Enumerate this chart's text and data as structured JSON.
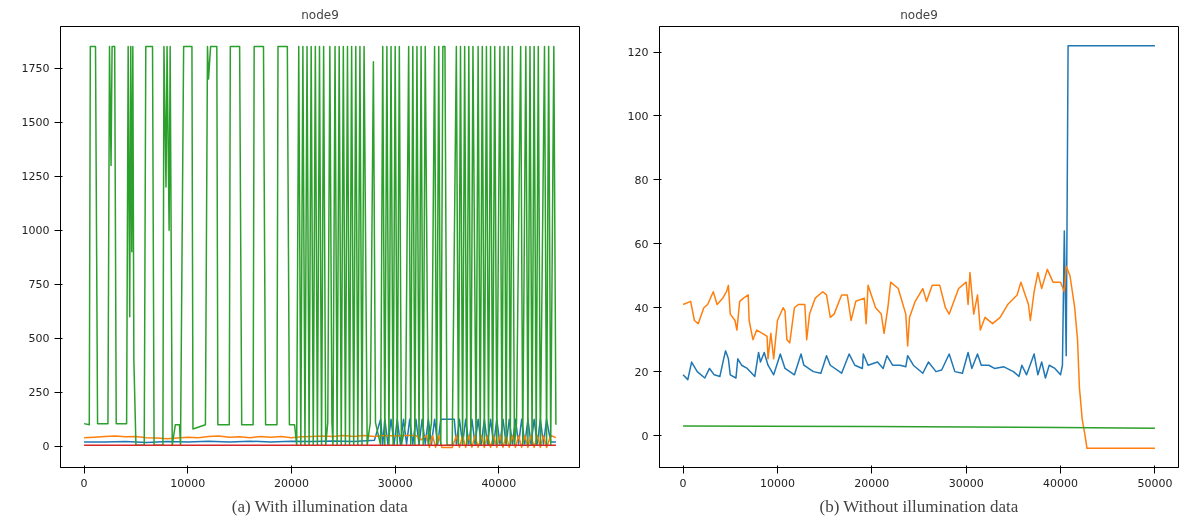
{
  "chart_data": [
    {
      "type": "line",
      "title": "node9",
      "annotations": [
        "(a) With illumination data"
      ],
      "grid": false,
      "xlim": [
        -2275,
        47775
      ],
      "ylim": [
        -98,
        1943
      ],
      "xticks": [
        0,
        10000,
        20000,
        30000,
        40000
      ],
      "yticks": [
        0,
        250,
        500,
        750,
        1000,
        1250,
        1500,
        1750
      ],
      "series": [
        {
          "color": "#1f77b4",
          "x": [
            0,
            2000,
            4000,
            6000,
            8000,
            10000,
            12000,
            14000,
            16000,
            18000,
            20000,
            22000,
            24000,
            26000,
            28000,
            28600,
            28800,
            29000,
            29300,
            29600,
            29900,
            30200,
            30500,
            30800,
            31100,
            31400,
            31700,
            32000,
            32300,
            32600,
            32900,
            33200,
            33500,
            33800,
            34100,
            34400,
            35700,
            35900,
            36200,
            36500,
            36800,
            37100,
            37400,
            37700,
            38000,
            38300,
            38600,
            38900,
            39200,
            39500,
            39800,
            40100,
            40400,
            40700,
            41000,
            41300,
            41600,
            41900,
            42200,
            42500,
            42800,
            43100,
            43400,
            43700,
            44000,
            44300,
            44600,
            45000,
            45500
          ],
          "values": [
            20,
            20,
            22,
            18,
            22,
            20,
            24,
            20,
            24,
            20,
            24,
            22,
            25,
            22,
            28,
            125,
            10,
            125,
            10,
            125,
            10,
            125,
            10,
            125,
            10,
            125,
            10,
            125,
            10,
            125,
            10,
            125,
            10,
            125,
            10,
            125,
            125,
            10,
            125,
            10,
            125,
            10,
            125,
            10,
            125,
            10,
            125,
            10,
            125,
            10,
            125,
            10,
            125,
            10,
            125,
            10,
            125,
            10,
            125,
            10,
            125,
            10,
            125,
            10,
            125,
            10,
            125,
            20,
            20
          ]
        },
        {
          "color": "#ff7f0e",
          "x": [
            0,
            1000,
            2000,
            3000,
            4000,
            5000,
            6000,
            7000,
            8000,
            9000,
            10000,
            11000,
            12000,
            13000,
            14000,
            15000,
            16000,
            17000,
            18000,
            19000,
            20000,
            21000,
            22000,
            23000,
            24000,
            25000,
            26000,
            27000,
            28000,
            29000,
            30000,
            31000,
            32000,
            32500,
            33000,
            33300,
            33600,
            33900,
            34200,
            34500,
            35500,
            35900,
            36200,
            36500,
            36800,
            37100,
            37400,
            37700,
            38000,
            38300,
            38600,
            38900,
            39200,
            39500,
            39800,
            40100,
            40400,
            40700,
            41000,
            41300,
            41600,
            41900,
            42200,
            42500,
            42800,
            43100,
            43400,
            43700,
            44000,
            44300,
            44600,
            45000,
            45500
          ],
          "values": [
            40,
            42,
            45,
            48,
            44,
            46,
            40,
            38,
            35,
            38,
            42,
            40,
            45,
            48,
            42,
            44,
            40,
            45,
            42,
            46,
            40,
            44,
            46,
            48,
            45,
            50,
            45,
            50,
            46,
            50,
            48,
            50,
            50,
            30,
            50,
            -5,
            50,
            -5,
            50,
            -5,
            -5,
            50,
            -5,
            50,
            -5,
            50,
            -5,
            50,
            -5,
            50,
            -5,
            50,
            -5,
            50,
            -5,
            50,
            -5,
            50,
            -5,
            50,
            -5,
            50,
            -5,
            50,
            -5,
            50,
            -5,
            50,
            -5,
            50,
            -5,
            50,
            40
          ]
        },
        {
          "color": "#2ca02c",
          "x": [
            0,
            500,
            600,
            1100,
            1300,
            2300,
            2450,
            2600,
            2700,
            2950,
            3100,
            4100,
            4250,
            4400,
            4500,
            4600,
            4700,
            4800,
            5000,
            5800,
            5950,
            6600,
            6750,
            7600,
            7700,
            7900,
            8000,
            8200,
            8300,
            8500,
            8800,
            9200,
            9300,
            9600,
            10400,
            10500,
            11700,
            11900,
            12000,
            12200,
            12800,
            12900,
            14000,
            14100,
            15000,
            15200,
            16300,
            16400,
            17300,
            17500,
            18600,
            18700,
            19600,
            19800,
            20300,
            20500,
            20700,
            20900,
            21100,
            21300,
            21500,
            21700,
            21900,
            22100,
            22300,
            22500,
            22700,
            22900,
            23100,
            23300,
            23500,
            23700,
            23900,
            24000,
            24200,
            24400,
            24600,
            24800,
            25000,
            25200,
            25400,
            25600,
            25800,
            26000,
            26200,
            26400,
            26600,
            26800,
            27000,
            27300,
            27600,
            27900,
            28100,
            28600,
            28800,
            29000,
            29200,
            29400,
            29600,
            29800,
            30000,
            30200,
            30400,
            30600,
            31000,
            31300,
            31500,
            31700,
            31900,
            32100,
            32300,
            32500,
            32700,
            32900,
            33200,
            33500,
            33800,
            34000,
            34200,
            34400,
            34600,
            34800,
            35000,
            35500,
            35900,
            36100,
            36300,
            36500,
            36700,
            36900,
            37100,
            37300,
            37500,
            37800,
            38000,
            38200,
            38400,
            38600,
            38800,
            39000,
            39200,
            39400,
            39600,
            39800,
            40100,
            40300,
            40500,
            40700,
            40900,
            41100,
            41300,
            41500,
            41700,
            42100,
            42300,
            42600,
            42800,
            43000,
            43200,
            43400,
            43600,
            43800,
            44000,
            44400,
            44600,
            44800,
            45000,
            45300,
            45500
          ],
          "values": [
            105,
            100,
            1850,
            1850,
            105,
            105,
            1850,
            1300,
            1850,
            1850,
            105,
            105,
            1850,
            600,
            1850,
            900,
            1850,
            400,
            5,
            5,
            1850,
            1850,
            5,
            5,
            1850,
            1200,
            1850,
            1000,
            1850,
            5,
            100,
            100,
            5,
            1850,
            1850,
            80,
            100,
            1850,
            1700,
            1850,
            1850,
            100,
            100,
            1850,
            1850,
            100,
            100,
            1850,
            1850,
            100,
            100,
            1850,
            1850,
            100,
            100,
            5,
            1850,
            5,
            1850,
            5,
            1850,
            5,
            1850,
            5,
            1850,
            5,
            1850,
            5,
            1850,
            5,
            110,
            1850,
            110,
            5,
            1850,
            5,
            1850,
            5,
            1850,
            5,
            1850,
            5,
            1850,
            5,
            1850,
            5,
            1850,
            5,
            1850,
            5,
            110,
            1780,
            110,
            5,
            1850,
            5,
            1850,
            5,
            1850,
            5,
            1850,
            5,
            1850,
            5,
            110,
            1850,
            5,
            1850,
            5,
            1850,
            5,
            1850,
            5,
            1850,
            5,
            110,
            1850,
            5,
            1850,
            5,
            1850,
            1850,
            5,
            5,
            1850,
            5,
            1850,
            5,
            1850,
            5,
            1850,
            5,
            1850,
            5,
            1850,
            5,
            1850,
            5,
            1850,
            5,
            1850,
            5,
            1850,
            5,
            1850,
            5,
            1850,
            5,
            1850,
            5,
            1850,
            5,
            110,
            1850,
            5,
            1850,
            5,
            1850,
            5,
            1850,
            5,
            1850,
            5,
            1850,
            5,
            1850,
            5,
            1850,
            100
          ]
        },
        {
          "color": "#d62728",
          "x": [
            0,
            45500
          ],
          "values": [
            5,
            5
          ]
        }
      ]
    },
    {
      "type": "line",
      "title": "node9",
      "annotations": [
        "(b) Without illumination data"
      ],
      "grid": false,
      "xlim": [
        -2500,
        52500
      ],
      "ylim": [
        -10,
        128
      ],
      "xticks": [
        0,
        10000,
        20000,
        30000,
        40000,
        50000
      ],
      "yticks": [
        0,
        20,
        40,
        60,
        80,
        100,
        120
      ],
      "series": [
        {
          "color": "#1f77b4",
          "x": [
            0,
            500,
            900,
            1500,
            2300,
            2800,
            3300,
            3900,
            4300,
            4500,
            4800,
            5000,
            5600,
            5800,
            6200,
            6800,
            7600,
            8000,
            8200,
            8600,
            9000,
            9600,
            10300,
            10800,
            11800,
            12500,
            12800,
            13800,
            14600,
            15200,
            15600,
            16800,
            17600,
            18200,
            19000,
            19100,
            19600,
            20600,
            21200,
            21600,
            22200,
            23000,
            23600,
            23800,
            24400,
            25400,
            26000,
            26800,
            27400,
            28200,
            28800,
            29600,
            30200,
            30600,
            31200,
            31600,
            32400,
            33000,
            34000,
            35000,
            35600,
            35900,
            36400,
            37200,
            37600,
            38000,
            38400,
            38800,
            39400,
            40000,
            40200,
            40400,
            40600,
            40800,
            50000
          ],
          "values": [
            19,
            17.5,
            23,
            20,
            18,
            21,
            19,
            18.5,
            24,
            26.5,
            24,
            19,
            18,
            24,
            22,
            21,
            18.5,
            26,
            23,
            26,
            22,
            19,
            25.5,
            21,
            19,
            25.5,
            22,
            20,
            19.5,
            25,
            22,
            19.5,
            25.5,
            22,
            21,
            25.5,
            22,
            23,
            21,
            25,
            22,
            22,
            21.5,
            25,
            22,
            19.5,
            23,
            20,
            20.5,
            25.5,
            20,
            19.5,
            26,
            21,
            25.5,
            22,
            22,
            21,
            21.5,
            20,
            18.5,
            22,
            19,
            25.5,
            19,
            23,
            18,
            22,
            21,
            19,
            22,
            64,
            25,
            122,
            122
          ]
        },
        {
          "color": "#ff7f0e",
          "x": [
            0,
            800,
            1200,
            1600,
            2200,
            2600,
            3200,
            3600,
            4200,
            4600,
            4800,
            5000,
            5500,
            5700,
            6000,
            6400,
            6900,
            7000,
            7400,
            7800,
            8400,
            8900,
            9000,
            9300,
            9600,
            10000,
            10600,
            10800,
            11000,
            11300,
            11800,
            12200,
            12900,
            13100,
            13400,
            14000,
            14800,
            15200,
            15600,
            16000,
            16800,
            17400,
            17800,
            18300,
            19200,
            19400,
            19600,
            20400,
            21000,
            21300,
            21700,
            22000,
            22800,
            23600,
            23800,
            24000,
            24600,
            25400,
            25800,
            26400,
            27200,
            27800,
            28200,
            29200,
            30000,
            30200,
            30400,
            30800,
            31200,
            31500,
            32000,
            32800,
            33600,
            34400,
            35400,
            35800,
            36600,
            36800,
            37200,
            37600,
            38000,
            38600,
            39200,
            40000,
            40400,
            40600,
            41000,
            41500,
            41800,
            42000,
            42300,
            42600,
            42800,
            44000,
            46000,
            48000,
            50000
          ],
          "values": [
            41,
            42,
            36,
            35,
            40,
            41,
            45,
            41,
            43,
            45,
            47,
            38,
            36,
            33,
            42,
            43,
            44,
            36,
            30,
            33,
            32,
            31,
            24,
            32,
            24,
            36,
            40,
            39,
            30,
            29,
            40,
            41,
            41,
            30,
            38,
            43,
            45,
            44,
            37,
            38,
            44,
            44,
            36,
            42,
            43,
            35,
            47,
            40,
            38,
            32,
            40,
            48,
            46,
            38,
            28,
            37,
            42,
            46,
            42,
            47,
            47,
            40,
            38,
            46,
            48,
            41,
            51,
            38,
            44,
            33,
            37,
            35,
            37,
            41,
            44,
            48,
            41,
            36,
            45,
            51,
            46,
            52,
            48,
            48,
            45,
            53,
            50,
            40,
            30,
            15,
            5,
            0,
            -4,
            -4,
            -4,
            -4,
            -4
          ]
        },
        {
          "color": "#2ca02c",
          "x": [
            0,
            20000,
            40000,
            50000
          ],
          "values": [
            3,
            2.8,
            2.5,
            2.3
          ]
        }
      ]
    }
  ]
}
